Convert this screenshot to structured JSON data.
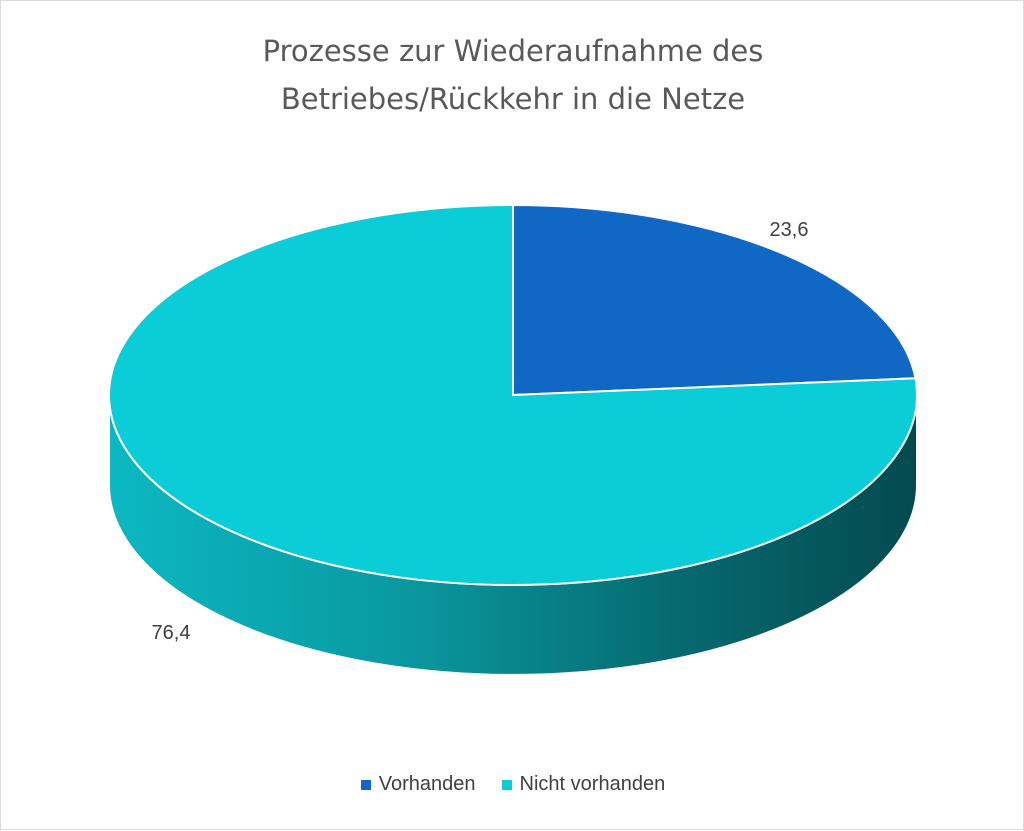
{
  "chart_data": {
    "type": "pie",
    "title_lines": [
      "Prozesse zur Wiederaufnahme des",
      "Betriebes/Rückkehr in die Netze"
    ],
    "labels": [
      "Vorhanden",
      "Nicht vorhanden"
    ],
    "values": [
      23.6,
      76.4
    ],
    "value_labels": [
      "23,6",
      "76,4"
    ],
    "colors": [
      "#1068c4",
      "#0bcdd7"
    ],
    "side_colors": [
      "#0a4d86",
      "#0b8f96"
    ],
    "legend_position": "bottom",
    "three_d": true
  }
}
